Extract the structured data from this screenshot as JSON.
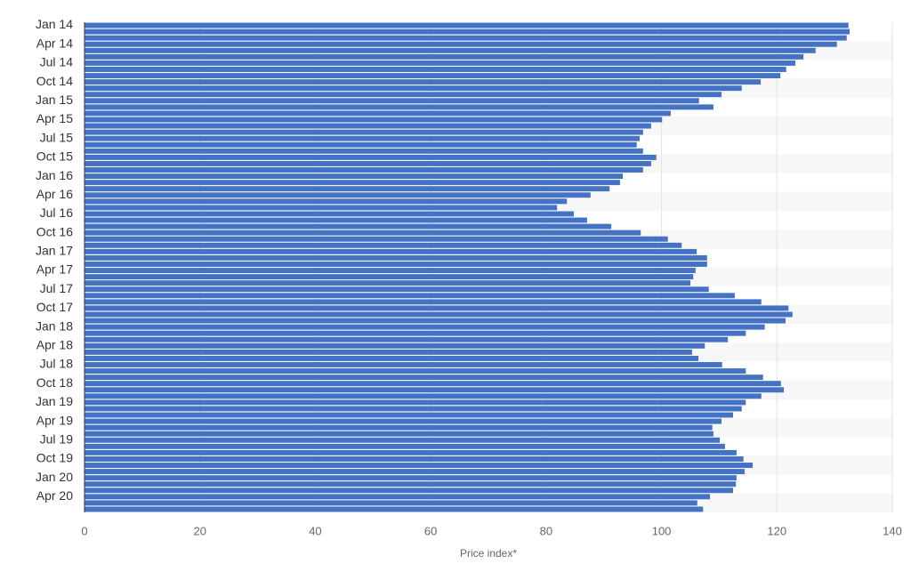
{
  "chart_data": {
    "type": "barh",
    "x_label": "Price index*",
    "color": "#4472c4",
    "categories": [
      "Jan 14",
      null,
      null,
      "Apr 14",
      null,
      null,
      "Jul 14",
      null,
      null,
      "Oct 14",
      null,
      null,
      "Jan 15",
      null,
      null,
      "Apr 15",
      null,
      null,
      "Jul 15",
      null,
      null,
      "Oct 15",
      null,
      null,
      "Jan 16",
      null,
      null,
      "Apr 16",
      null,
      null,
      "Jul 16",
      null,
      null,
      "Oct 16",
      null,
      null,
      "Jan 17",
      null,
      null,
      "Apr 17",
      null,
      null,
      "Jul 17",
      null,
      null,
      "Oct 17",
      null,
      null,
      "Jan 18",
      null,
      null,
      "Apr 18",
      null,
      null,
      "Jul 18",
      null,
      null,
      "Oct 18",
      null,
      null,
      "Jan 19",
      null,
      null,
      "Apr 19",
      null,
      null,
      "Jul 19",
      null,
      null,
      "Oct 19",
      null,
      null,
      "Jan 20",
      null,
      null,
      "Apr 20",
      null,
      null
    ],
    "values": [
      132.4,
      132.6,
      132.1,
      130.4,
      126.7,
      124.6,
      123.2,
      121.6,
      120.6,
      117.2,
      113.9,
      110.4,
      106.5,
      109.0,
      101.6,
      100.1,
      98.2,
      96.8,
      96.2,
      95.7,
      96.8,
      99.1,
      98.2,
      96.8,
      93.3,
      92.8,
      91.0,
      87.7,
      83.6,
      81.9,
      84.8,
      87.1,
      91.3,
      96.4,
      101.1,
      103.5,
      106.1,
      107.9,
      107.9,
      105.9,
      105.5,
      105.0,
      108.2,
      112.7,
      117.3,
      122.0,
      122.7,
      121.5,
      117.9,
      114.6,
      111.5,
      107.5,
      105.3,
      106.4,
      110.5,
      114.6,
      117.6,
      120.7,
      121.2,
      117.3,
      114.6,
      113.9,
      112.4,
      110.4,
      108.8,
      109.0,
      110.1,
      111.0,
      113.0,
      114.2,
      115.8,
      114.4,
      113.0,
      112.9,
      112.4,
      108.4,
      106.2,
      107.2
    ],
    "xlim": [
      0,
      140
    ],
    "xticks": [
      0,
      20,
      40,
      60,
      80,
      100,
      120,
      140
    ],
    "grid": true
  }
}
